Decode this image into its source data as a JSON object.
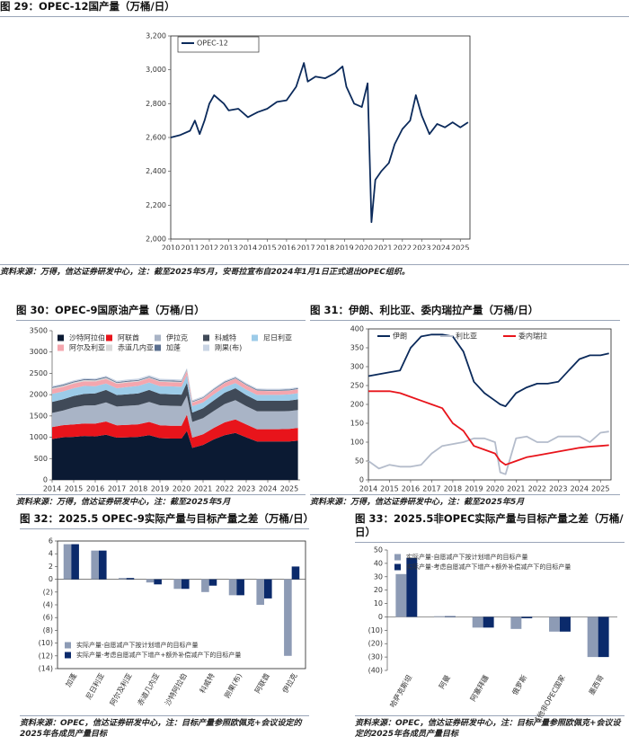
{
  "chart_data": [
    {
      "type": "line",
      "title": "图 29：OPEC-12国产量（万桶/日）",
      "source": "资料来源：万得，信达证券研发中心，注：截至2025年5月，安哥拉宣布自2024年1月1日正式退出OPEC组织。",
      "x": [
        2010,
        2010.5,
        2011,
        2011.25,
        2011.5,
        2011.75,
        2012,
        2012.25,
        2012.75,
        2013,
        2013.5,
        2014,
        2014.5,
        2015,
        2015.5,
        2016,
        2016.5,
        2016.9,
        2017.1,
        2017.5,
        2018,
        2018.5,
        2018.9,
        2019.1,
        2019.5,
        2019.9,
        2020.2,
        2020.4,
        2020.6,
        2020.9,
        2021.3,
        2021.6,
        2022,
        2022.4,
        2022.7,
        2023,
        2023.4,
        2023.8,
        2024.2,
        2024.6,
        2025,
        2025.4
      ],
      "series": [
        {
          "name": "OPEC-12",
          "color": "#0b2a5b",
          "values": [
            2600,
            2615,
            2640,
            2700,
            2620,
            2700,
            2800,
            2850,
            2800,
            2760,
            2770,
            2720,
            2750,
            2770,
            2810,
            2820,
            2900,
            3040,
            2930,
            2960,
            2950,
            2980,
            3020,
            2900,
            2800,
            2780,
            2920,
            2100,
            2350,
            2400,
            2450,
            2560,
            2650,
            2700,
            2850,
            2730,
            2620,
            2680,
            2660,
            2690,
            2660,
            2690
          ]
        }
      ],
      "xlim": [
        2010,
        2025.5
      ],
      "xticks": [
        2010,
        2011,
        2012,
        2013,
        2014,
        2015,
        2016,
        2017,
        2018,
        2019,
        2020,
        2021,
        2022,
        2023,
        2024,
        2025
      ],
      "ylim": [
        2000,
        3200
      ],
      "yticks": [
        {
          "value": 2000,
          "label": "2,000"
        },
        {
          "value": 2200,
          "label": "2,200"
        },
        {
          "value": 2400,
          "label": "2,400"
        },
        {
          "value": 2600,
          "label": "2,600"
        },
        {
          "value": 2800,
          "label": "2,800"
        },
        {
          "value": 3000,
          "label": "3,000"
        },
        {
          "value": 3200,
          "label": "3,200"
        }
      ],
      "legend": "upper left"
    },
    {
      "type": "area",
      "stacked": true,
      "title": "图 30：OPEC-9国原油产量（万桶/日）",
      "source": "资料来源：万得，信达证券研发中心，注：截至2025年5月",
      "x": [
        2014,
        2014.5,
        2015,
        2015.5,
        2016,
        2016.5,
        2017,
        2017.5,
        2018,
        2018.5,
        2019,
        2019.5,
        2020,
        2020.25,
        2020.5,
        2021,
        2021.5,
        2022,
        2022.5,
        2023,
        2023.5,
        2024,
        2024.5,
        2025,
        2025.4
      ],
      "series": [
        {
          "name": "沙特阿拉伯",
          "color": "#0b1a33",
          "values": [
            960,
            1000,
            1010,
            1030,
            1020,
            1060,
            990,
            1000,
            1010,
            1050,
            980,
            970,
            970,
            1150,
            750,
            820,
            950,
            1050,
            1100,
            1000,
            900,
            900,
            900,
            900,
            920
          ]
        },
        {
          "name": "阿联酋",
          "color": "#e8141b",
          "values": [
            280,
            285,
            290,
            295,
            300,
            310,
            290,
            290,
            295,
            310,
            300,
            300,
            300,
            380,
            240,
            250,
            270,
            300,
            320,
            300,
            290,
            290,
            290,
            295,
            300
          ]
        },
        {
          "name": "伊拉克",
          "color": "#a9b4c6",
          "values": [
            330,
            340,
            400,
            420,
            430,
            450,
            440,
            450,
            450,
            470,
            470,
            470,
            460,
            450,
            370,
            380,
            400,
            430,
            450,
            430,
            420,
            420,
            420,
            420,
            420
          ]
        },
        {
          "name": "科威特",
          "color": "#404a58",
          "values": [
            260,
            265,
            270,
            275,
            280,
            290,
            270,
            270,
            275,
            280,
            270,
            270,
            270,
            300,
            220,
            230,
            245,
            265,
            280,
            260,
            250,
            245,
            245,
            245,
            250
          ]
        },
        {
          "name": "尼日利亚",
          "color": "#9ccbe8",
          "values": [
            190,
            185,
            180,
            185,
            170,
            150,
            160,
            170,
            175,
            175,
            180,
            185,
            185,
            180,
            150,
            140,
            145,
            130,
            120,
            130,
            135,
            140,
            140,
            145,
            145
          ]
        },
        {
          "name": "阿尔及利亚",
          "color": "#f4a6ae",
          "values": [
            110,
            108,
            110,
            110,
            108,
            110,
            105,
            105,
            102,
            102,
            102,
            100,
            100,
            100,
            82,
            86,
            92,
            100,
            104,
            100,
            96,
            90,
            90,
            90,
            90
          ]
        },
        {
          "name": "赤道几内亚",
          "color": "#d9d9d9",
          "values": [
            27,
            27,
            27,
            27,
            26,
            25,
            20,
            19,
            17,
            17,
            16,
            16,
            16,
            16,
            13,
            12,
            11,
            9,
            8,
            6,
            6,
            6,
            6,
            6,
            6
          ]
        },
        {
          "name": "加蓬",
          "color": "#5b6f8f",
          "values": [
            22,
            22,
            22,
            22,
            21,
            21,
            20,
            20,
            19,
            19,
            20,
            20,
            20,
            20,
            17,
            18,
            18,
            19,
            19,
            20,
            21,
            21,
            21,
            21,
            21
          ]
        },
        {
          "name": "刚果(布)",
          "color": "#c9d4e4",
          "values": [
            24,
            24,
            24,
            24,
            25,
            26,
            30,
            33,
            33,
            33,
            33,
            33,
            32,
            30,
            28,
            27,
            27,
            26,
            26,
            26,
            26,
            26,
            26,
            26,
            26
          ]
        }
      ],
      "xlim": [
        2014,
        2025.5
      ],
      "xticks": [
        2014,
        2015,
        2016,
        2017,
        2018,
        2019,
        2020,
        2021,
        2022,
        2023,
        2024,
        2025
      ],
      "ylim": [
        0,
        3500
      ],
      "yticks": [
        0,
        500,
        1000,
        1500,
        2000,
        2500,
        3000,
        3500
      ],
      "legend": "upper left"
    },
    {
      "type": "line",
      "title": "图 31：伊朗、利比亚、委内瑞拉产量（万桶/日）",
      "source": "资料来源：万得，信达证券研发中心，注：截至2025年5月",
      "x": [
        2014,
        2014.5,
        2015,
        2015.5,
        2016,
        2016.5,
        2017,
        2017.5,
        2018,
        2018.5,
        2019,
        2019.5,
        2020,
        2020.25,
        2020.5,
        2021,
        2021.5,
        2022,
        2022.5,
        2023,
        2023.5,
        2024,
        2024.5,
        2025,
        2025.4
      ],
      "series": [
        {
          "name": "伊朗",
          "color": "#0b2a5b",
          "values": [
            275,
            280,
            285,
            290,
            350,
            380,
            385,
            385,
            380,
            340,
            260,
            230,
            210,
            200,
            195,
            230,
            245,
            255,
            255,
            260,
            290,
            320,
            330,
            330,
            335
          ]
        },
        {
          "name": "利比亚",
          "color": "#b4bccb",
          "values": [
            50,
            30,
            40,
            35,
            35,
            40,
            70,
            90,
            95,
            100,
            110,
            110,
            100,
            20,
            15,
            110,
            115,
            100,
            100,
            115,
            115,
            115,
            100,
            125,
            128
          ]
        },
        {
          "name": "委内瑞拉",
          "color": "#e8141b",
          "values": [
            235,
            235,
            235,
            230,
            220,
            210,
            200,
            190,
            150,
            130,
            90,
            80,
            70,
            50,
            40,
            50,
            60,
            65,
            70,
            75,
            80,
            85,
            88,
            90,
            92
          ]
        }
      ],
      "xlim": [
        2014,
        2025.5
      ],
      "xticks": [
        2014,
        2015,
        2016,
        2017,
        2018,
        2019,
        2020,
        2021,
        2022,
        2023,
        2024,
        2025
      ],
      "ylim": [
        0,
        400
      ],
      "yticks": [
        0,
        50,
        100,
        150,
        200,
        250,
        300,
        350,
        400
      ],
      "legend": "upper left"
    },
    {
      "type": "bar",
      "title": "图 32：2025.5 OPEC-9实际产量与目标产量之差（万桶/日）",
      "source": "资料来源：OPEC，信达证券研发中心，注：目标产量参照欧佩克+会议设定的2025年各成员产量目标",
      "categories": [
        "加蓬",
        "尼日利亚",
        "阿尔及利亚",
        "赤道几内亚",
        "沙特阿拉伯",
        "科威特",
        "刚果(布)",
        "阿联酋",
        "伊拉克"
      ],
      "series": [
        {
          "name": "实际产量-自愿减产下按计划增产的目标产量",
          "color": "#8d9bb5",
          "values": [
            5.5,
            4.5,
            0.2,
            -0.5,
            -1.5,
            -2,
            -2.5,
            -4,
            -12
          ]
        },
        {
          "name": "实际产量-考虑自愿减产下增产+额外补偿减产下的目标产量",
          "color": "#0b2a6b",
          "values": [
            5.5,
            4.5,
            0.2,
            -0.8,
            -1.5,
            -1,
            -2.5,
            -3,
            2
          ]
        }
      ],
      "ylim": [
        -14,
        6
      ],
      "yticks": [
        {
          "value": -14,
          "label": "(14)"
        },
        {
          "value": -12,
          "label": "(12)"
        },
        {
          "value": -10,
          "label": "(10)"
        },
        {
          "value": -8,
          "label": "(8)"
        },
        {
          "value": -6,
          "label": "(6)"
        },
        {
          "value": -4,
          "label": "(4)"
        },
        {
          "value": -2,
          "label": "(2)"
        },
        0,
        2,
        4,
        6
      ],
      "negative_tick_color": "#e8141b",
      "legend": "lower left"
    },
    {
      "type": "bar",
      "title": "图 33：2025.5非OPEC实际产量与目标产量之差（万桶/日）",
      "source": "资料来源：OPEC，信达证券研发中心，注：目标产量参照欧佩克+会议设定的2025年各成员产量目标",
      "categories": [
        "哈萨克斯坦",
        "阿曼",
        "阿塞拜疆",
        "俄罗斯",
        "其他非OPEC国家",
        "墨西哥"
      ],
      "series": [
        {
          "name": "实际产量-自愿减产下按计划增产的目标产量",
          "color": "#8d9bb5",
          "values": [
            32,
            0.5,
            -8,
            -9,
            -11,
            -30
          ]
        },
        {
          "name": "实际产量-考虑自愿减产下增产+额外补偿减产下的目标产量",
          "color": "#0b2a6b",
          "values": [
            44,
            0.5,
            -8,
            -1,
            -11,
            -30
          ]
        }
      ],
      "ylim": [
        -40,
        50
      ],
      "yticks": [
        {
          "value": -40,
          "label": "(40)"
        },
        {
          "value": -30,
          "label": "(30)"
        },
        {
          "value": -20,
          "label": "(20)"
        },
        {
          "value": -10,
          "label": "(10)"
        },
        0,
        10,
        20,
        30,
        40,
        50
      ],
      "negative_tick_color": "#e8141b",
      "legend": "upper left"
    }
  ]
}
